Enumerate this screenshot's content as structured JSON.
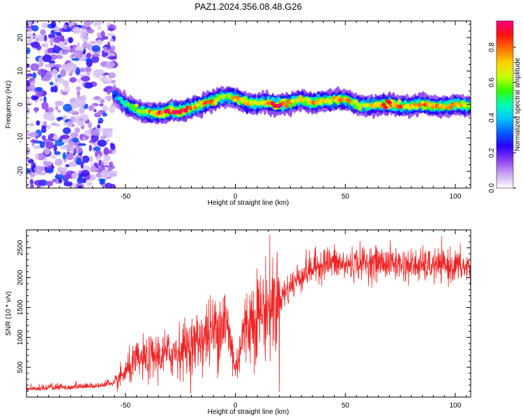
{
  "title": "PAZ1.2024.356.08.48.G26",
  "chart_data": [
    {
      "type": "heatmap",
      "xlabel": "Height of straight line (km)",
      "ylabel": "Frequency (Hz)",
      "xlim": [
        -95,
        107
      ],
      "ylim": [
        -25,
        25
      ],
      "xticks": [
        -50,
        0,
        50,
        100
      ],
      "yticks": [
        -20,
        -10,
        0,
        10,
        20
      ],
      "colorbar": {
        "label": "Normalized spectral amplitude",
        "range": [
          0,
          0.95
        ],
        "ticks": [
          "0.0",
          "0.2",
          "0.4",
          "0.6",
          "0.8"
        ],
        "colormap": [
          "#ffffff",
          "#c9a8f0",
          "#8a3ff0",
          "#2800ff",
          "#0060ff",
          "#00c8ff",
          "#00ffb0",
          "#30ff00",
          "#c8ff00",
          "#ffd000",
          "#ff7000",
          "#ff1010",
          "#ff0080"
        ]
      },
      "ridge": {
        "x": [
          -55,
          -50,
          -45,
          -40,
          -35,
          -30,
          -25,
          -20,
          -15,
          -10,
          -5,
          0,
          5,
          10,
          15,
          20,
          25,
          30,
          35,
          40,
          45,
          50,
          55,
          60,
          65,
          70,
          75,
          80,
          85,
          90,
          95,
          100,
          105
        ],
        "frequency": [
          3,
          0,
          -1.5,
          -2.5,
          -2.5,
          -2,
          -2,
          -1,
          0,
          1,
          2.5,
          2,
          0.5,
          0.5,
          0.5,
          0,
          0.5,
          1.5,
          0.5,
          1,
          1.5,
          1.5,
          0,
          -0.5,
          0,
          0,
          -0.5,
          -0.5,
          0,
          -0.5,
          -0.5,
          0,
          -0.5
        ],
        "amplitude": [
          0.25,
          0.45,
          0.55,
          0.65,
          0.8,
          0.85,
          0.9,
          0.75,
          0.7,
          0.75,
          0.55,
          0.7,
          0.75,
          0.65,
          0.7,
          0.9,
          0.75,
          0.6,
          0.75,
          0.65,
          0.7,
          0.7,
          0.65,
          0.6,
          0.7,
          0.85,
          0.75,
          0.7,
          0.75,
          0.7,
          0.65,
          0.7,
          0.65
        ]
      },
      "noise_region_x": [
        -95,
        -55
      ]
    },
    {
      "type": "line",
      "xlabel": "Height of straight line (km)",
      "ylabel": "SNR (10 * v/v)",
      "xlim": [
        -95,
        107
      ],
      "ylim": [
        0,
        2800
      ],
      "xticks": [
        -50,
        0,
        50,
        100
      ],
      "yticks": [
        500,
        1000,
        1500,
        2000,
        2500
      ],
      "color": "#ee2222",
      "series": [
        {
          "x": [
            -95,
            -85,
            -75,
            -65,
            -55,
            -50,
            -45,
            -40,
            -35,
            -30,
            -25,
            -20,
            -15,
            -10,
            -5,
            -2,
            0,
            3,
            6,
            10,
            15,
            20,
            25,
            30,
            35,
            40,
            45,
            50,
            55,
            60,
            70,
            80,
            90,
            100,
            107
          ],
          "values": [
            130,
            140,
            150,
            170,
            220,
            420,
            600,
            630,
            700,
            720,
            800,
            850,
            1000,
            1100,
            1300,
            900,
            450,
            1000,
            1250,
            1400,
            1500,
            1650,
            1850,
            2050,
            2150,
            2250,
            2250,
            2200,
            2250,
            2250,
            2250,
            2200,
            2200,
            2200,
            2150
          ]
        }
      ]
    }
  ]
}
